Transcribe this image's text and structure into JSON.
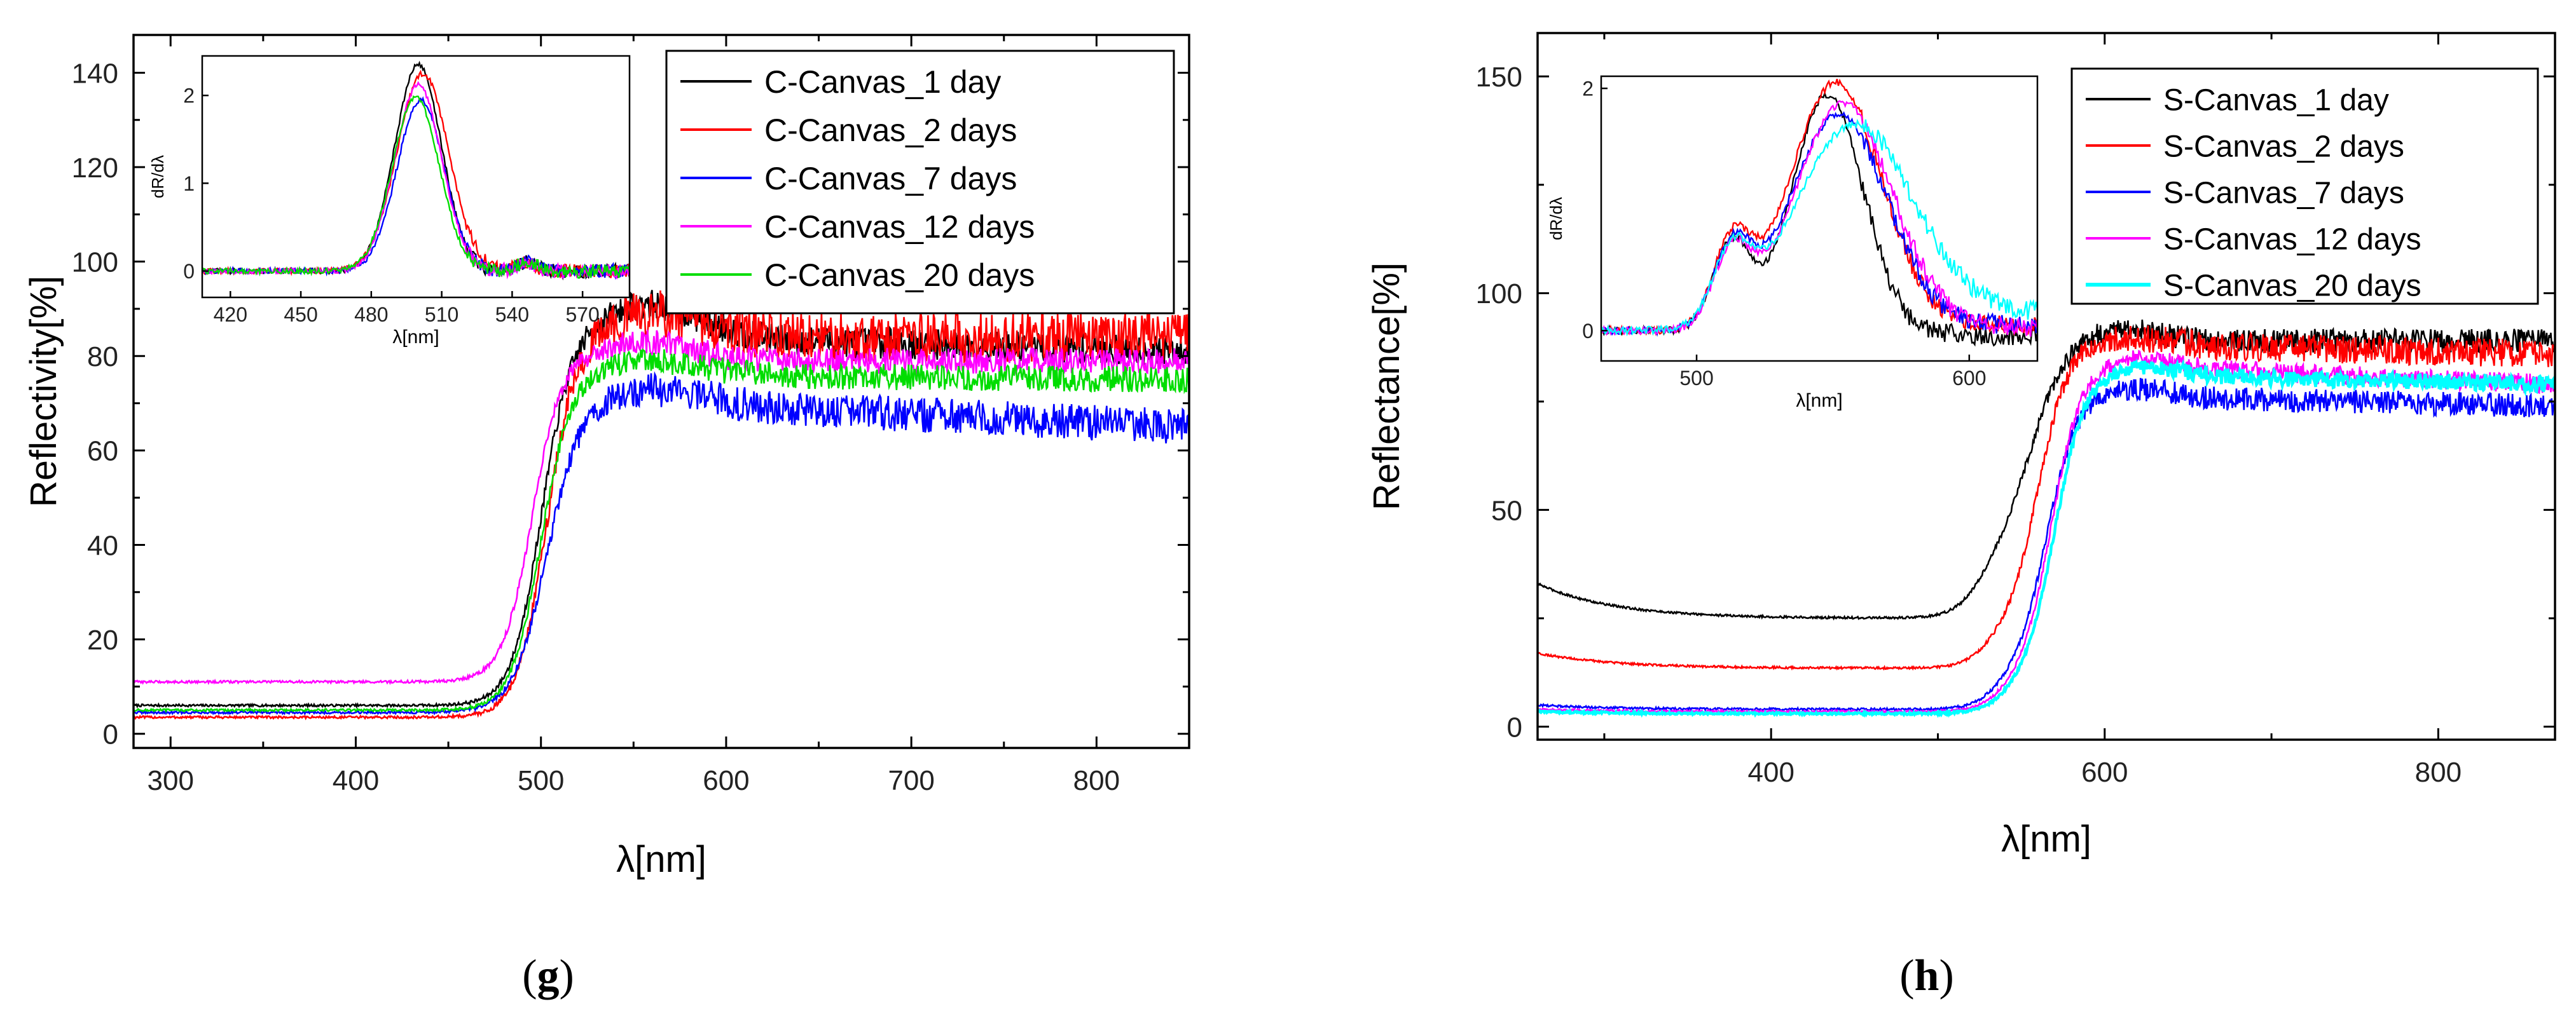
{
  "chart_data": [
    {
      "id": "g",
      "type": "line",
      "panel_label_open": "(",
      "panel_label_letter": "g",
      "panel_label_close": ")",
      "xlabel": "λ[nm]",
      "ylabel": "Reflectivity[%]",
      "xlim": [
        280,
        850
      ],
      "ylim": [
        -3,
        148
      ],
      "xticks": [
        300,
        400,
        500,
        600,
        700,
        800
      ],
      "yticks": [
        0,
        20,
        40,
        60,
        80,
        100,
        120,
        140
      ],
      "legend_position": "top-right",
      "series": [
        {
          "name": "C-Canvas_1 day",
          "color": "#000000",
          "low": 6,
          "center": 500,
          "width": 8,
          "overshoot": 7,
          "high": 84,
          "noise": 3.0,
          "tilt": -3
        },
        {
          "name": "C-Canvas_2 days",
          "color": "#ff0000",
          "low": 3.5,
          "center": 503,
          "width": 8,
          "overshoot": 5,
          "high": 84,
          "noise": 5.0,
          "tilt": 0
        },
        {
          "name": "C-Canvas_7 days",
          "color": "#0000ff",
          "low": 4.5,
          "center": 503,
          "width": 9,
          "overshoot": 3,
          "high": 70,
          "noise": 3.5,
          "tilt": -5
        },
        {
          "name": "C-Canvas_12 days",
          "color": "#ff00ff",
          "low": 11,
          "center": 495,
          "width": 8,
          "overshoot": 4,
          "high": 79,
          "noise": 2.5,
          "tilt": 0
        },
        {
          "name": "C-Canvas_20 days",
          "color": "#00dd00",
          "low": 5,
          "center": 500,
          "width": 8,
          "overshoot": 3,
          "high": 76,
          "noise": 2.5,
          "tilt": -1
        }
      ],
      "inset": {
        "xlabel": "λ[nm]",
        "ylabel": "dR/dλ",
        "xlim": [
          408,
          590
        ],
        "ylim": [
          -0.3,
          2.45
        ],
        "xticks": [
          420,
          450,
          480,
          510,
          540,
          570
        ],
        "yticks": [
          0,
          1,
          2
        ],
        "series": [
          {
            "name": "C-Canvas_1 day",
            "color": "#000000",
            "peak": 2.35,
            "center": 500,
            "width": 10
          },
          {
            "name": "C-Canvas_2 days",
            "color": "#ff0000",
            "peak": 2.25,
            "center": 502,
            "width": 11
          },
          {
            "name": "C-Canvas_7 days",
            "color": "#0000ff",
            "peak": 1.95,
            "center": 501,
            "width": 10
          },
          {
            "name": "C-Canvas_12 days",
            "color": "#ff00ff",
            "peak": 2.12,
            "center": 500,
            "width": 10
          },
          {
            "name": "C-Canvas_20 days",
            "color": "#00dd00",
            "peak": 1.98,
            "center": 499,
            "width": 10
          }
        ]
      }
    },
    {
      "id": "h",
      "type": "line",
      "panel_label_open": "(",
      "panel_label_letter": "h",
      "panel_label_close": ")",
      "xlabel": "λ[nm]",
      "ylabel": "Reflectance[%]",
      "xlim": [
        260,
        870
      ],
      "ylim": [
        -3,
        160
      ],
      "xticks": [
        400,
        600,
        800
      ],
      "yticks": [
        0,
        50,
        100,
        150
      ],
      "legend_position": "top-right",
      "series": [
        {
          "name": "S-Canvas_1 day",
          "color": "#000000",
          "low": 25,
          "start": 33,
          "shoulder": 12,
          "center": 555,
          "width": 11,
          "overshoot": 3,
          "high": 89,
          "noise": 2.5,
          "tilt": 0
        },
        {
          "name": "S-Canvas_2 days",
          "color": "#ff0000",
          "low": 13.5,
          "start": 17,
          "shoulder": 8,
          "center": 560,
          "width": 9,
          "overshoot": 2,
          "high": 88,
          "noise": 3.0,
          "tilt": -2
        },
        {
          "name": "S-Canvas_7 days",
          "color": "#0000ff",
          "low": 4,
          "start": 5,
          "shoulder": 7,
          "center": 565,
          "width": 9,
          "overshoot": 2,
          "high": 76,
          "noise": 2.5,
          "tilt": -2
        },
        {
          "name": "S-Canvas_12 days",
          "color": "#ff00ff",
          "low": 3.5,
          "start": 4,
          "shoulder": 6,
          "center": 568,
          "width": 9,
          "overshoot": 2,
          "high": 83,
          "noise": 2.0,
          "tilt": -4
        },
        {
          "name": "S-Canvas_20 days",
          "color": "#00ffff",
          "low": 3,
          "start": 3.5,
          "shoulder": 6,
          "center": 570,
          "width": 9,
          "overshoot": 2,
          "high": 81,
          "noise": 1.6,
          "tilt": -2
        }
      ],
      "inset": {
        "xlabel": "λ[nm]",
        "ylabel": "dR/dλ",
        "xlim": [
          465,
          625
        ],
        "ylim": [
          -0.25,
          2.1
        ],
        "xticks": [
          500,
          600
        ],
        "yticks": [
          0,
          2
        ],
        "series": [
          {
            "name": "S-Canvas_1 day",
            "color": "#000000",
            "peak": 1.95,
            "center": 548,
            "width": 13,
            "p1": 0.72,
            "end": -0.05
          },
          {
            "name": "S-Canvas_2 days",
            "color": "#ff0000",
            "peak": 2.05,
            "center": 551,
            "width": 17,
            "p1": 0.68,
            "end": 0.05
          },
          {
            "name": "S-Canvas_7 days",
            "color": "#0000ff",
            "peak": 1.78,
            "center": 552,
            "width": 18,
            "p1": 0.62,
            "end": 0.05
          },
          {
            "name": "S-Canvas_12 days",
            "color": "#ff00ff",
            "peak": 1.88,
            "center": 554,
            "width": 18,
            "p1": 0.6,
            "end": 0.03
          },
          {
            "name": "S-Canvas_20 days",
            "color": "#00ffff",
            "peak": 1.7,
            "center": 558,
            "width": 22,
            "p1": 0.55,
            "end": 0.15
          }
        ]
      }
    }
  ]
}
